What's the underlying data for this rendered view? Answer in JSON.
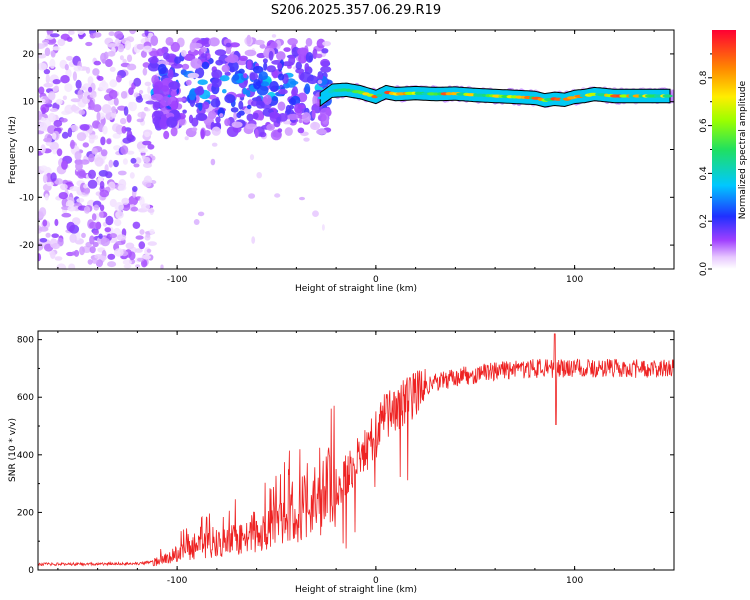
{
  "title": "S206.2025.357.06.29.R19",
  "colors": {
    "snr_line": "#ee2222",
    "trace_outline": "#000000"
  },
  "chart_data": [
    {
      "type": "heatmap",
      "name": "spectrogram",
      "xlabel": "Height of straight line (km)",
      "ylabel": "Frequency (Hz)",
      "xlim": [
        -170,
        150
      ],
      "ylim": [
        -25,
        25
      ],
      "xticks": [
        -100,
        0,
        100
      ],
      "yticks": [
        -20,
        -10,
        0,
        10,
        20
      ],
      "colorbar": {
        "label": "Normalized spectral amplitude",
        "range": [
          0,
          1
        ],
        "ticks": [
          0.0,
          0.2,
          0.4,
          0.6,
          0.8
        ],
        "colormap": "rainbow (white-purple-blue-cyan-green-yellow-red)"
      },
      "trace": {
        "description": "Dominant frequency ridge",
        "x": [
          -28,
          -22,
          -15,
          -8,
          0,
          5,
          10,
          20,
          30,
          40,
          50,
          60,
          70,
          80,
          85,
          90,
          95,
          100,
          105,
          110,
          120,
          130,
          140,
          148
        ],
        "y": [
          10.5,
          12.3,
          12.5,
          12.0,
          11.0,
          12.0,
          11.6,
          11.8,
          11.6,
          11.7,
          11.4,
          11.2,
          11.0,
          10.8,
          10.3,
          10.6,
          10.4,
          11.0,
          11.2,
          11.6,
          11.2,
          11.2,
          11.2,
          11.2
        ]
      }
    },
    {
      "type": "line",
      "name": "snr",
      "xlabel": "Height of straight line (km)",
      "ylabel": "SNR (10 * v/v)",
      "xlim": [
        -170,
        150
      ],
      "ylim": [
        0,
        830
      ],
      "xticks": [
        -100,
        0,
        100
      ],
      "yticks": [
        0,
        200,
        400,
        600,
        800
      ],
      "envelope": {
        "x": [
          -170,
          -120,
          -110,
          -100,
          -90,
          -80,
          -70,
          -60,
          -50,
          -40,
          -30,
          -20,
          -15,
          -10,
          0,
          5,
          10,
          20,
          30,
          40,
          60,
          80,
          100,
          120,
          150
        ],
        "y": [
          20,
          22,
          30,
          55,
          80,
          95,
          110,
          130,
          160,
          200,
          240,
          300,
          330,
          380,
          470,
          540,
          560,
          610,
          650,
          670,
          690,
          700,
          700,
          700,
          700
        ]
      }
    }
  ]
}
